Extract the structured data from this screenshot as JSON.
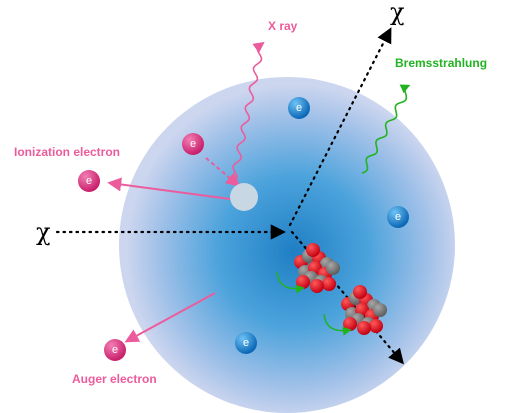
{
  "labels": {
    "x_ray": "X ray",
    "chi_top": "χ",
    "chi_left": "χ",
    "bremsstrahlung": "Bremsstrahlung",
    "ionization_electron": "Ionization electron",
    "auger_electron": "Auger electron"
  },
  "electrons": [
    "e",
    "e",
    "e",
    "e",
    "e",
    "e"
  ]
}
